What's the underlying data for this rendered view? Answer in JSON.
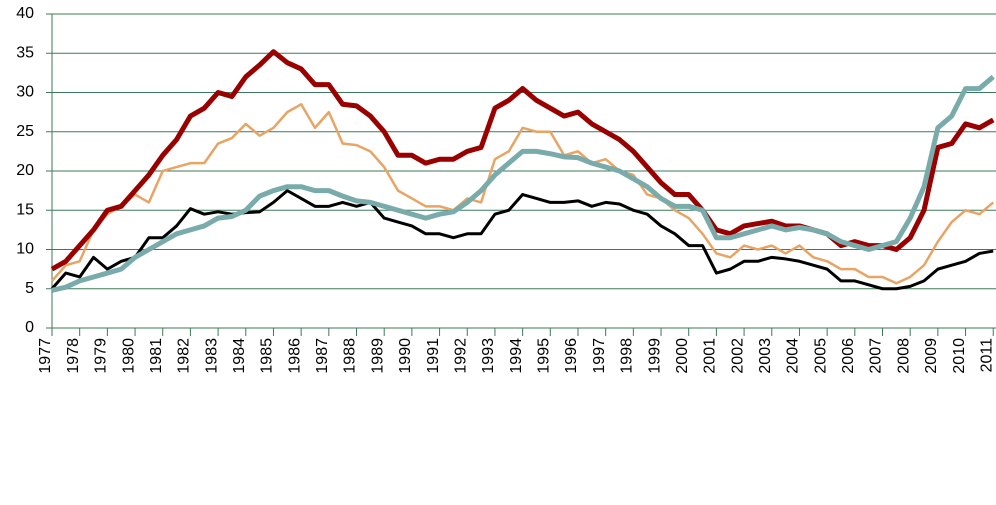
{
  "chart_data": {
    "type": "line",
    "x": [
      1977,
      1977.5,
      1978,
      1978.5,
      1979,
      1979.5,
      1980,
      1980.5,
      1981,
      1981.5,
      1982,
      1982.5,
      1983,
      1983.5,
      1984,
      1984.5,
      1985,
      1985.5,
      1986,
      1986.5,
      1987,
      1987.5,
      1988,
      1988.5,
      1989,
      1989.5,
      1990,
      1990.5,
      1991,
      1991.5,
      1992,
      1992.5,
      1993,
      1993.5,
      1994,
      1994.5,
      1995,
      1995.5,
      1996,
      1996.5,
      1997,
      1997.5,
      1998,
      1998.5,
      1999,
      1999.5,
      2000,
      2000.5,
      2001,
      2001.5,
      2002,
      2002.5,
      2003,
      2003.5,
      2004,
      2004.5,
      2005,
      2005.5,
      2006,
      2006.5,
      2007,
      2007.5,
      2008,
      2008.5,
      2009,
      2009.5,
      2010,
      2010.5,
      2011
    ],
    "xlim": [
      1977,
      2011.1
    ],
    "xticks": [
      1977,
      1978,
      1979,
      1980,
      1981,
      1982,
      1983,
      1984,
      1985,
      1986,
      1987,
      1988,
      1989,
      1990,
      1991,
      1992,
      1993,
      1994,
      1995,
      1996,
      1997,
      1998,
      1999,
      2000,
      2001,
      2002,
      2003,
      2004,
      2005,
      2006,
      2007,
      2008,
      2009,
      2010,
      2011
    ],
    "ylim": [
      0,
      40
    ],
    "yticks": [
      0,
      5,
      10,
      15,
      20,
      25,
      30,
      35,
      40
    ],
    "grid": true,
    "series": [
      {
        "color": "#e8a464",
        "width": 2.5,
        "values": [
          6,
          8,
          8.5,
          12.5,
          14.5,
          15.5,
          17,
          16,
          20,
          20.5,
          21,
          21,
          23.5,
          24.2,
          26,
          24.5,
          25.5,
          27.5,
          28.5,
          25.5,
          27.5,
          23.5,
          23.3,
          22.5,
          20.5,
          17.5,
          16.5,
          15.5,
          15.5,
          15,
          16.5,
          16,
          21.5,
          22.5,
          25.5,
          25,
          25,
          22,
          22.5,
          21,
          21.5,
          20,
          19.5,
          17,
          16.5,
          15,
          14,
          12,
          9.5,
          9,
          10.5,
          10,
          10.5,
          9.5,
          10.5,
          9,
          8.5,
          7.5,
          7.5,
          6.5,
          6.5,
          5.7,
          6.5,
          8,
          11,
          13.5,
          15,
          14.5,
          16
        ]
      },
      {
        "color": "#000000",
        "width": 3,
        "values": [
          5,
          7,
          6.5,
          9,
          7.5,
          8.5,
          9,
          11.5,
          11.5,
          13,
          15.2,
          14.5,
          14.8,
          14.5,
          14.7,
          14.8,
          16,
          17.5,
          16.5,
          15.5,
          15.5,
          16,
          15.5,
          16,
          14,
          13.5,
          13,
          12,
          12,
          11.5,
          12,
          12,
          14.5,
          15,
          17,
          16.5,
          16,
          16,
          16.2,
          15.5,
          16,
          15.8,
          15,
          14.5,
          13,
          12,
          10.5,
          10.5,
          7,
          7.5,
          8.5,
          8.5,
          9,
          8.8,
          8.5,
          8,
          7.5,
          6,
          6,
          5.5,
          5,
          5,
          5.3,
          6,
          7.5,
          8,
          8.5,
          9.5,
          9.8
        ]
      },
      {
        "color": "#990000",
        "width": 5,
        "values": [
          7.5,
          8.5,
          10.5,
          12.5,
          15,
          15.5,
          17.5,
          19.5,
          22,
          24,
          27,
          28,
          30,
          29.5,
          32,
          33.5,
          35.2,
          33.8,
          33,
          31,
          31,
          28.5,
          28.3,
          27,
          25,
          22,
          22,
          21,
          21.5,
          21.5,
          22.5,
          23,
          28,
          29,
          30.5,
          29,
          28,
          27,
          27.5,
          26,
          25,
          24,
          22.5,
          20.5,
          18.5,
          17,
          17,
          15,
          12.5,
          12,
          13,
          13.3,
          13.6,
          13,
          13,
          12.5,
          12,
          10.5,
          11,
          10.5,
          10.5,
          10,
          11.5,
          15,
          23,
          23.5,
          26,
          25.5,
          26.5
        ]
      },
      {
        "color": "#7aabab",
        "width": 5,
        "values": [
          4.8,
          5.2,
          6,
          6.5,
          7,
          7.5,
          9,
          10,
          11,
          12,
          12.5,
          13,
          14,
          14.2,
          15,
          16.8,
          17.5,
          18,
          18,
          17.5,
          17.5,
          16.8,
          16.2,
          16,
          15.5,
          15,
          14.5,
          14,
          14.5,
          14.8,
          16,
          17.5,
          19.5,
          21,
          22.5,
          22.5,
          22.2,
          21.8,
          21.7,
          21,
          20.5,
          20,
          19,
          18,
          16.5,
          15.5,
          15.5,
          15,
          11.5,
          11.5,
          12,
          12.5,
          13,
          12.5,
          12.8,
          12.5,
          12,
          11,
          10.5,
          10,
          10.5,
          11,
          14,
          18,
          25.5,
          27,
          30.5,
          30.5,
          32
        ]
      }
    ]
  }
}
